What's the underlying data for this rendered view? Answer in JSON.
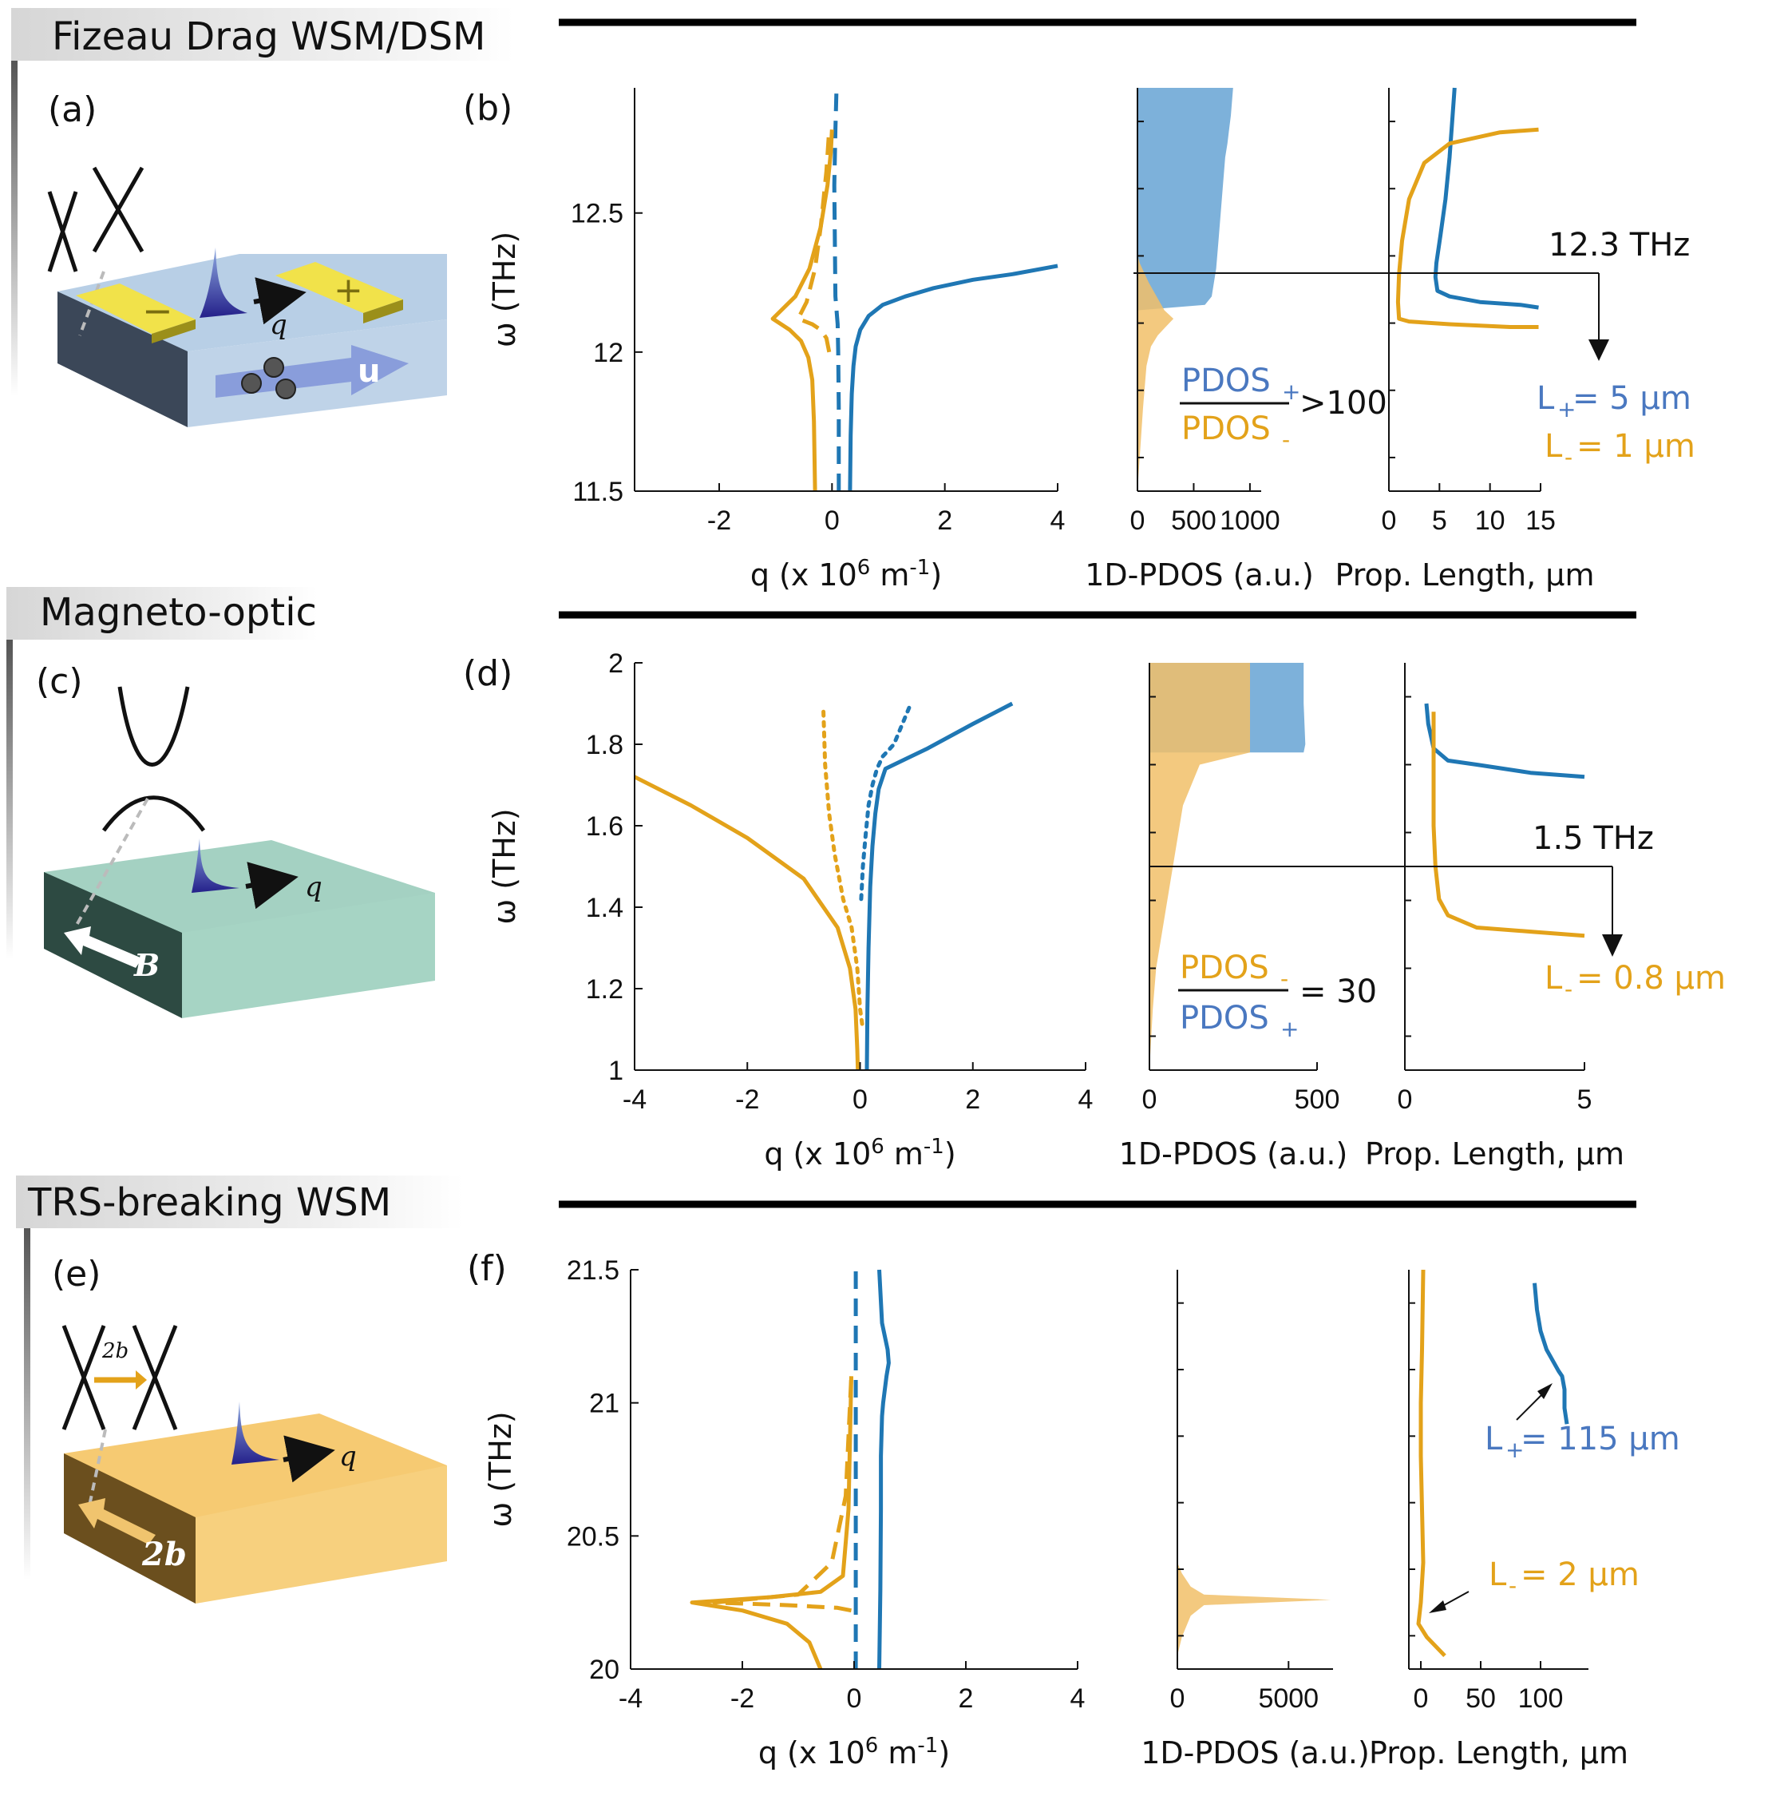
{
  "colors": {
    "blue": "#1f77b4",
    "gold": "#e3a21a",
    "pdos_blue": "#6fa8d6",
    "pdos_gold": "#f1c069",
    "text_blue": "#4a78c0",
    "text_gold": "#d99a10",
    "slab_blue": "#b8cfe6",
    "slab_green": "#a4d1c2",
    "slab_orange": "#f6ca72"
  },
  "rows": [
    {
      "section_title": "Fizeau Drag WSM/DSM",
      "schematic_label": "(a)",
      "panel_label": "(b)",
      "schematic": {
        "q_label": "q",
        "u_label": "u",
        "minus_label": "−",
        "plus_label": "+"
      },
      "annotation_freq": "12.3 THz",
      "ratio": {
        "num": "PDOS",
        "num_sub": "+",
        "den": "PDOS",
        "den_sub": "-",
        "rel": ">100"
      },
      "lengths": [
        {
          "L": "L",
          "sub": "+",
          "rest": "= 5 µm"
        },
        {
          "L": "L",
          "sub": "-",
          "rest": "= 1 µm"
        }
      ]
    },
    {
      "section_title": "Magneto-optic",
      "schematic_label": "(c)",
      "panel_label": "(d)",
      "schematic": {
        "q_label": "q",
        "field_label": "B"
      },
      "annotation_freq": "1.5 THz",
      "ratio": {
        "num": "PDOS",
        "num_sub": "-",
        "den": "PDOS",
        "den_sub": "+",
        "rel": "= 30"
      },
      "lengths": [
        {
          "L": "L",
          "sub": "-",
          "rest": "= 0.8 µm"
        }
      ]
    },
    {
      "section_title": "TRS-breaking WSM",
      "schematic_label": "(e)",
      "panel_label": "(f)",
      "schematic": {
        "q_label": "q",
        "field_label": "2b",
        "small_label": "2b"
      },
      "annotation_freq": "",
      "lengths": [
        {
          "L": "L",
          "sub": "+",
          "rest": "= 115 µm"
        },
        {
          "L": "L",
          "sub": "-",
          "rest": "= 2 µm"
        }
      ]
    }
  ],
  "axis_titles": {
    "omega": "ω (THz)",
    "q": "q (x 10",
    "q_exp": "6",
    "q_unit": " m",
    "q_unit_exp": "-1",
    "q_close": ")",
    "pdos": "1D-PDOS (a.u.)",
    "prop": "Prop. Length, µm"
  },
  "chart_data": [
    {
      "type": "line",
      "panel": "b-dispersion",
      "xlabel": "q (x 10^6 m^-1)",
      "ylabel": "ω (THz)",
      "xlim": [
        -3.5,
        4
      ],
      "ylim": [
        11.5,
        12.95
      ],
      "xticks": [
        "-2",
        "0",
        "2",
        "4"
      ],
      "xtick_values": [
        -2,
        0,
        2,
        4
      ],
      "yticks": [
        "11.5",
        "12",
        "12.5"
      ],
      "ytick_values": [
        11.5,
        12,
        12.5
      ],
      "series": [
        {
          "color": "blue",
          "style": "solid",
          "x": [
            0.32,
            0.33,
            0.35,
            0.38,
            0.42,
            0.5,
            0.65,
            0.9,
            1.3,
            1.8,
            2.5,
            3.2,
            4.0
          ],
          "y": [
            11.5,
            11.7,
            11.85,
            11.95,
            12.02,
            12.08,
            12.13,
            12.17,
            12.2,
            12.23,
            12.26,
            12.28,
            12.31
          ]
        },
        {
          "color": "blue",
          "style": "dashed",
          "x": [
            0.12,
            0.12,
            0.11,
            0.1,
            0.08,
            0.06,
            0.05,
            0.04,
            0.06,
            0.08
          ],
          "y": [
            11.5,
            11.8,
            12.0,
            12.1,
            12.15,
            12.2,
            12.4,
            12.6,
            12.8,
            12.95
          ]
        },
        {
          "color": "gold",
          "style": "solid",
          "x": [
            -0.3,
            -0.32,
            -0.35,
            -0.42,
            -0.55,
            -0.75,
            -1.05,
            -0.9,
            -0.65,
            -0.4,
            -0.2,
            -0.08,
            -0.02,
            0.0
          ],
          "y": [
            11.5,
            11.75,
            11.9,
            11.98,
            12.04,
            12.08,
            12.12,
            12.15,
            12.2,
            12.3,
            12.45,
            12.6,
            12.72,
            12.8
          ]
        },
        {
          "color": "gold",
          "style": "dashed",
          "x": [
            -0.05,
            -0.1,
            -0.2,
            -0.35,
            -0.6,
            -0.45,
            -0.3,
            -0.2,
            -0.1,
            -0.05
          ],
          "y": [
            12.0,
            12.05,
            12.08,
            12.1,
            12.12,
            12.18,
            12.3,
            12.45,
            12.65,
            12.8
          ]
        }
      ]
    },
    {
      "type": "area",
      "panel": "b-pdos",
      "xlabel": "1D-PDOS (a.u.)",
      "xlim": [
        0,
        1100
      ],
      "ylim": [
        11.5,
        12.95
      ],
      "xticks": [
        "0",
        "500",
        "1000"
      ],
      "xtick_values": [
        0,
        500,
        1000
      ],
      "series": [
        {
          "color": "pdos_blue",
          "x": [
            0,
            600,
            660,
            700,
            720,
            740,
            760,
            780,
            800,
            815,
            830,
            840,
            850,
            780,
            600,
            0
          ],
          "y": [
            12.15,
            12.17,
            12.2,
            12.3,
            12.4,
            12.5,
            12.6,
            12.7,
            12.75,
            12.8,
            12.85,
            12.9,
            12.95,
            12.95,
            12.95,
            12.95
          ]
        },
        {
          "color": "pdos_gold",
          "x": [
            0,
            50,
            80,
            120,
            180,
            250,
            320,
            240,
            100,
            20,
            0
          ],
          "y": [
            11.5,
            11.8,
            11.95,
            12.02,
            12.06,
            12.09,
            12.12,
            12.15,
            12.25,
            12.32,
            12.35
          ]
        }
      ],
      "marker_freq": 12.3
    },
    {
      "type": "line",
      "panel": "b-length",
      "xlabel": "Prop. Length, µm",
      "xlim": [
        0,
        15
      ],
      "ylim": [
        11.5,
        12.95
      ],
      "xticks": [
        "0",
        "5",
        "10",
        "15"
      ],
      "xtick_values": [
        0,
        5,
        10,
        15
      ],
      "series": [
        {
          "color": "blue",
          "x": [
            6.5,
            6.3,
            6.0,
            5.6,
            5.1,
            4.7,
            4.6,
            4.8,
            6.0,
            9.0,
            13.0,
            14.8
          ],
          "y": [
            12.95,
            12.85,
            12.7,
            12.55,
            12.42,
            12.32,
            12.27,
            12.22,
            12.2,
            12.18,
            12.17,
            12.16
          ]
        },
        {
          "color": "gold",
          "x": [
            14.8,
            11.0,
            6.0,
            3.5,
            2.0,
            1.3,
            1.0,
            0.9,
            1.0,
            2.0,
            6.0,
            12.0,
            14.8
          ],
          "y": [
            12.8,
            12.79,
            12.75,
            12.68,
            12.55,
            12.4,
            12.28,
            12.18,
            12.12,
            12.11,
            12.1,
            12.09,
            12.09
          ]
        }
      ]
    },
    {
      "type": "line",
      "panel": "d-dispersion",
      "xlabel": "q (x 10^6 m^-1)",
      "ylabel": "ω (THz)",
      "xlim": [
        -4,
        4
      ],
      "ylim": [
        1,
        2
      ],
      "xticks": [
        "-4",
        "-2",
        "0",
        "2",
        "4"
      ],
      "xtick_values": [
        -4,
        -2,
        0,
        2,
        4
      ],
      "yticks": [
        "1",
        "1.2",
        "1.4",
        "1.6",
        "1.8",
        "2"
      ],
      "ytick_values": [
        1,
        1.2,
        1.4,
        1.6,
        1.8,
        2
      ],
      "series": [
        {
          "color": "blue",
          "style": "solid",
          "x": [
            0.12,
            0.13,
            0.15,
            0.18,
            0.22,
            0.27,
            0.33,
            0.45,
            1.2,
            2.0,
            2.7
          ],
          "y": [
            1.0,
            1.15,
            1.3,
            1.45,
            1.55,
            1.63,
            1.69,
            1.74,
            1.79,
            1.85,
            1.9
          ]
        },
        {
          "color": "blue",
          "style": "dotted",
          "x": [
            0.02,
            0.05,
            0.1,
            0.15,
            0.22,
            0.3,
            0.4,
            0.6,
            0.75,
            0.9
          ],
          "y": [
            1.42,
            1.5,
            1.58,
            1.65,
            1.7,
            1.74,
            1.77,
            1.8,
            1.85,
            1.9
          ]
        },
        {
          "color": "gold",
          "style": "solid",
          "x": [
            -4.0,
            -3.0,
            -2.0,
            -1.0,
            -0.4,
            -0.18,
            -0.08,
            -0.05,
            -0.04
          ],
          "y": [
            1.72,
            1.65,
            1.57,
            1.47,
            1.35,
            1.25,
            1.15,
            1.05,
            1.0
          ]
        },
        {
          "color": "gold",
          "style": "dotted",
          "x": [
            -0.65,
            -0.62,
            -0.55,
            -0.45,
            -0.3,
            -0.15,
            -0.05,
            0.0,
            0.05
          ],
          "y": [
            1.88,
            1.75,
            1.63,
            1.53,
            1.42,
            1.35,
            1.25,
            1.15,
            1.1
          ]
        }
      ]
    },
    {
      "type": "area",
      "panel": "d-pdos",
      "xlabel": "1D-PDOS (a.u.)",
      "xlim": [
        0,
        500
      ],
      "ylim": [
        1,
        2
      ],
      "xticks": [
        "0",
        "500"
      ],
      "xtick_values": [
        0,
        500
      ],
      "series": [
        {
          "color": "pdos_blue",
          "x": [
            0,
            460,
            465,
            460,
            460,
            0
          ],
          "y": [
            1.78,
            1.78,
            1.8,
            1.9,
            2.0,
            2.0
          ]
        },
        {
          "color": "pdos_gold",
          "x": [
            0,
            10,
            20,
            30,
            40,
            60,
            80,
            100,
            150,
            300,
            300,
            0
          ],
          "y": [
            1.0,
            1.15,
            1.25,
            1.3,
            1.35,
            1.45,
            1.55,
            1.65,
            1.75,
            1.78,
            2.0,
            2.0
          ]
        }
      ],
      "marker_freq": 1.5
    },
    {
      "type": "line",
      "panel": "d-length",
      "xlabel": "Prop. Length, µm",
      "xlim": [
        0,
        5
      ],
      "ylim": [
        1,
        2
      ],
      "xticks": [
        "0",
        "5"
      ],
      "xtick_values": [
        0,
        5
      ],
      "series": [
        {
          "color": "blue",
          "x": [
            0.6,
            0.65,
            0.8,
            1.2,
            2.0,
            3.5,
            5.0
          ],
          "y": [
            1.9,
            1.85,
            1.79,
            1.76,
            1.75,
            1.73,
            1.72
          ]
        },
        {
          "color": "gold",
          "x": [
            0.8,
            0.8,
            0.8,
            0.85,
            0.95,
            1.2,
            2.0,
            3.5,
            5.0
          ],
          "y": [
            1.88,
            1.75,
            1.6,
            1.5,
            1.42,
            1.38,
            1.35,
            1.34,
            1.33
          ]
        }
      ]
    },
    {
      "type": "line",
      "panel": "f-dispersion",
      "xlabel": "q (x 10^6 m^-1)",
      "ylabel": "ω (THz)",
      "xlim": [
        -4,
        4
      ],
      "ylim": [
        20,
        21.5
      ],
      "xticks": [
        "-4",
        "-2",
        "0",
        "2",
        "4"
      ],
      "xtick_values": [
        -4,
        -2,
        0,
        2,
        4
      ],
      "yticks": [
        "20",
        "20.5",
        "21",
        "21.5"
      ],
      "ytick_values": [
        20,
        20.5,
        21,
        21.5
      ],
      "series": [
        {
          "color": "blue",
          "style": "solid",
          "x": [
            0.45,
            0.47,
            0.48,
            0.48,
            0.5,
            0.52,
            0.55,
            0.58,
            0.62,
            0.6,
            0.5,
            0.45
          ],
          "y": [
            20.0,
            20.3,
            20.6,
            20.8,
            20.95,
            21.0,
            21.05,
            21.1,
            21.15,
            21.2,
            21.3,
            21.5
          ]
        },
        {
          "color": "blue",
          "style": "dashed",
          "x": [
            0.03,
            0.03,
            0.03
          ],
          "y": [
            20.0,
            20.75,
            21.5
          ]
        },
        {
          "color": "gold",
          "style": "solid",
          "x": [
            -0.6,
            -0.8,
            -1.2,
            -2.0,
            -2.9,
            -1.5,
            -0.6,
            -0.2,
            -0.1,
            -0.05
          ],
          "y": [
            20.0,
            20.1,
            20.17,
            20.22,
            20.25,
            20.27,
            20.29,
            20.35,
            20.6,
            21.1
          ]
        },
        {
          "color": "gold",
          "style": "dashed",
          "x": [
            -0.05,
            -0.3,
            -1.2,
            -2.5,
            -1.0,
            -0.4,
            -0.15,
            -0.05
          ],
          "y": [
            20.22,
            20.23,
            20.24,
            20.25,
            20.28,
            20.4,
            20.65,
            21.1
          ]
        }
      ]
    },
    {
      "type": "area",
      "panel": "f-pdos",
      "xlabel": "1D-PDOS (a.u.)",
      "xlim": [
        0,
        7000
      ],
      "ylim": [
        20,
        21.5
      ],
      "xticks": [
        "0",
        "5000"
      ],
      "xtick_values": [
        0,
        5000
      ],
      "series": [
        {
          "color": "pdos_gold",
          "x": [
            0,
            200,
            600,
            1200,
            6900,
            1200,
            600,
            200,
            0
          ],
          "y": [
            20.05,
            20.12,
            20.2,
            20.24,
            20.26,
            20.28,
            20.31,
            20.36,
            20.4
          ]
        }
      ]
    },
    {
      "type": "line",
      "panel": "f-length",
      "xlabel": "Prop. Length, µm",
      "xlim": [
        -10,
        140
      ],
      "ylim": [
        20,
        21.5
      ],
      "xticks": [
        "0",
        "50",
        "100"
      ],
      "xtick_values": [
        0,
        50,
        100
      ],
      "series": [
        {
          "color": "blue",
          "x": [
            95,
            97,
            100,
            105,
            110,
            115,
            118,
            120,
            120,
            122
          ],
          "y": [
            21.45,
            21.35,
            21.27,
            21.2,
            21.16,
            21.12,
            21.1,
            21.05,
            20.98,
            20.92
          ]
        },
        {
          "color": "gold",
          "x": [
            2,
            1,
            0,
            0,
            1,
            2,
            0,
            -2,
            5,
            20
          ],
          "y": [
            21.5,
            21.2,
            21.0,
            20.8,
            20.6,
            20.4,
            20.25,
            20.17,
            20.12,
            20.05
          ]
        }
      ]
    }
  ]
}
